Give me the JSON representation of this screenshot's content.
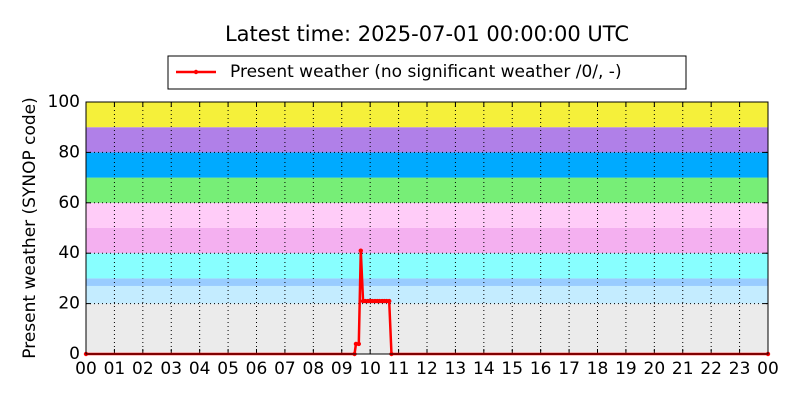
{
  "chart_data": {
    "type": "line",
    "title": "Latest time: 2025-07-01 00:00:00 UTC",
    "y_label": "Present weather (SYNOP code)",
    "x": [
      0,
      9.45,
      9.5,
      9.6,
      9.67,
      9.75,
      9.83,
      9.92,
      10.0,
      10.08,
      10.17,
      10.25,
      10.33,
      10.42,
      10.5,
      10.58,
      10.67,
      10.75,
      24
    ],
    "series": [
      {
        "name": "Present weather (no significant weather /0/, -)",
        "color": "#ff0000",
        "values": [
          0,
          0,
          4,
          4,
          41,
          21,
          21,
          21,
          21,
          21,
          21,
          21,
          21,
          21,
          21,
          21,
          21,
          0,
          0
        ]
      }
    ],
    "xlim": [
      0,
      24
    ],
    "xticks": [
      {
        "value": 0,
        "label": "00"
      },
      {
        "value": 1,
        "label": "01"
      },
      {
        "value": 2,
        "label": "02"
      },
      {
        "value": 3,
        "label": "03"
      },
      {
        "value": 4,
        "label": "04"
      },
      {
        "value": 5,
        "label": "05"
      },
      {
        "value": 6,
        "label": "06"
      },
      {
        "value": 7,
        "label": "07"
      },
      {
        "value": 8,
        "label": "08"
      },
      {
        "value": 9,
        "label": "09"
      },
      {
        "value": 10,
        "label": "10"
      },
      {
        "value": 11,
        "label": "11"
      },
      {
        "value": 12,
        "label": "12"
      },
      {
        "value": 13,
        "label": "13"
      },
      {
        "value": 14,
        "label": "14"
      },
      {
        "value": 15,
        "label": "15"
      },
      {
        "value": 16,
        "label": "16"
      },
      {
        "value": 17,
        "label": "17"
      },
      {
        "value": 18,
        "label": "18"
      },
      {
        "value": 19,
        "label": "19"
      },
      {
        "value": 20,
        "label": "20"
      },
      {
        "value": 21,
        "label": "21"
      },
      {
        "value": 22,
        "label": "22"
      },
      {
        "value": 23,
        "label": "23"
      },
      {
        "value": 24,
        "label": "00"
      }
    ],
    "ylim": [
      0,
      100
    ],
    "yticks": [
      0,
      20,
      40,
      60,
      80,
      100
    ],
    "grid": true,
    "legend": "top",
    "bands": [
      {
        "from": 0,
        "to": 20,
        "color": "#ebebeb"
      },
      {
        "from": 20,
        "to": 27,
        "color": "#c4ecff"
      },
      {
        "from": 27,
        "to": 30,
        "color": "#99ccff"
      },
      {
        "from": 30,
        "to": 40,
        "color": "#88ffff"
      },
      {
        "from": 40,
        "to": 50,
        "color": "#f4b0f0"
      },
      {
        "from": 50,
        "to": 60,
        "color": "#ffccf8"
      },
      {
        "from": 60,
        "to": 70,
        "color": "#77ee77"
      },
      {
        "from": 70,
        "to": 80,
        "color": "#00aaff"
      },
      {
        "from": 80,
        "to": 90,
        "color": "#b080e8"
      },
      {
        "from": 90,
        "to": 100,
        "color": "#f5f03a"
      }
    ]
  }
}
